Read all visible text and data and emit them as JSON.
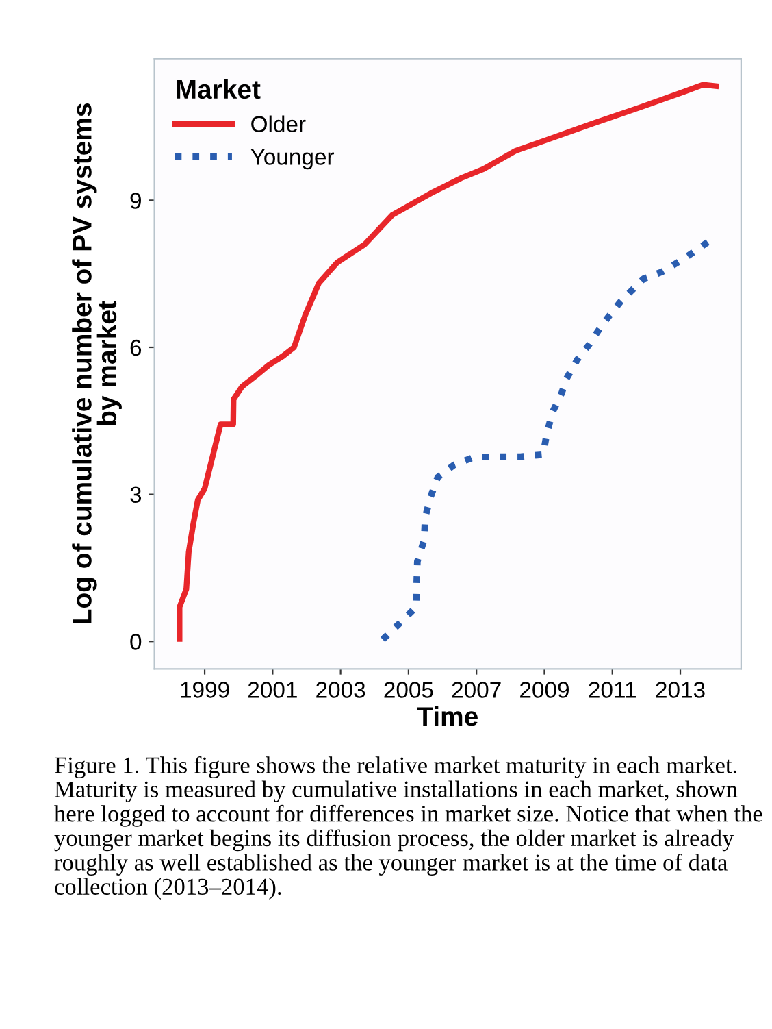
{
  "chart_data": {
    "type": "line",
    "xlabel": "Time",
    "ylabel": "Log of cumulative number of PV systems\nby market",
    "legend_title": "Market",
    "xlim": [
      1997.52,
      2014.79
    ],
    "ylim": [
      -0.56,
      11.89
    ],
    "xticks": [
      1999,
      2001,
      2003,
      2005,
      2007,
      2009,
      2011,
      2013
    ],
    "yticks": [
      0,
      3,
      6,
      9
    ],
    "grid": false,
    "legend": "top left",
    "marker": "none",
    "series": [
      {
        "name": "Older",
        "color": "#e8262a",
        "line_style": "solid",
        "x": [
          1998.26,
          1998.26,
          1998.46,
          1998.53,
          1998.66,
          1998.8,
          1999.0,
          1999.2,
          1999.4,
          1999.47,
          1999.84,
          1999.85,
          2000.1,
          2000.49,
          2000.89,
          2001.3,
          2001.63,
          2001.96,
          2002.36,
          2002.9,
          2003.71,
          2004.52,
          2005.73,
          2006.54,
          2007.21,
          2008.15,
          2009.1,
          2010.44,
          2011.79,
          2013.13,
          2013.67,
          2014.05
        ],
        "values": [
          0.05,
          0.7,
          1.07,
          1.82,
          2.38,
          2.89,
          3.12,
          3.68,
          4.24,
          4.43,
          4.43,
          4.94,
          5.2,
          5.41,
          5.64,
          5.82,
          6.0,
          6.66,
          7.31,
          7.73,
          8.1,
          8.7,
          9.17,
          9.45,
          9.64,
          10.01,
          10.24,
          10.57,
          10.89,
          11.22,
          11.36,
          11.33
        ]
      },
      {
        "name": "Younger",
        "color": "#2a5db0",
        "line_style": "dotted",
        "x": [
          2004.24,
          2004.74,
          2005.22,
          2005.24,
          2005.26,
          2005.46,
          2005.49,
          2005.65,
          2005.86,
          2006.34,
          2006.93,
          2007.62,
          2008.3,
          2008.96,
          2009.07,
          2009.24,
          2009.5,
          2009.65,
          2009.97,
          2010.31,
          2010.71,
          2011.25,
          2011.92,
          2012.46,
          2013.13,
          2014.0
        ],
        "values": [
          0.04,
          0.37,
          0.7,
          1.16,
          1.63,
          2.07,
          2.53,
          2.95,
          3.35,
          3.6,
          3.76,
          3.77,
          3.77,
          3.81,
          4.24,
          4.68,
          5.05,
          5.36,
          5.75,
          6.05,
          6.47,
          6.94,
          7.4,
          7.54,
          7.82,
          8.24
        ]
      }
    ],
    "annotations": [
      "Figure 1. This figure shows the relative market maturity in each market. Maturity is measured by cumulative installations in each market, shown here logged to account for differences in market size. Notice that when the younger market begins its diffusion process, the older market is already roughly as well established as the younger market is at the time of data collection (2013–2014)."
    ]
  }
}
